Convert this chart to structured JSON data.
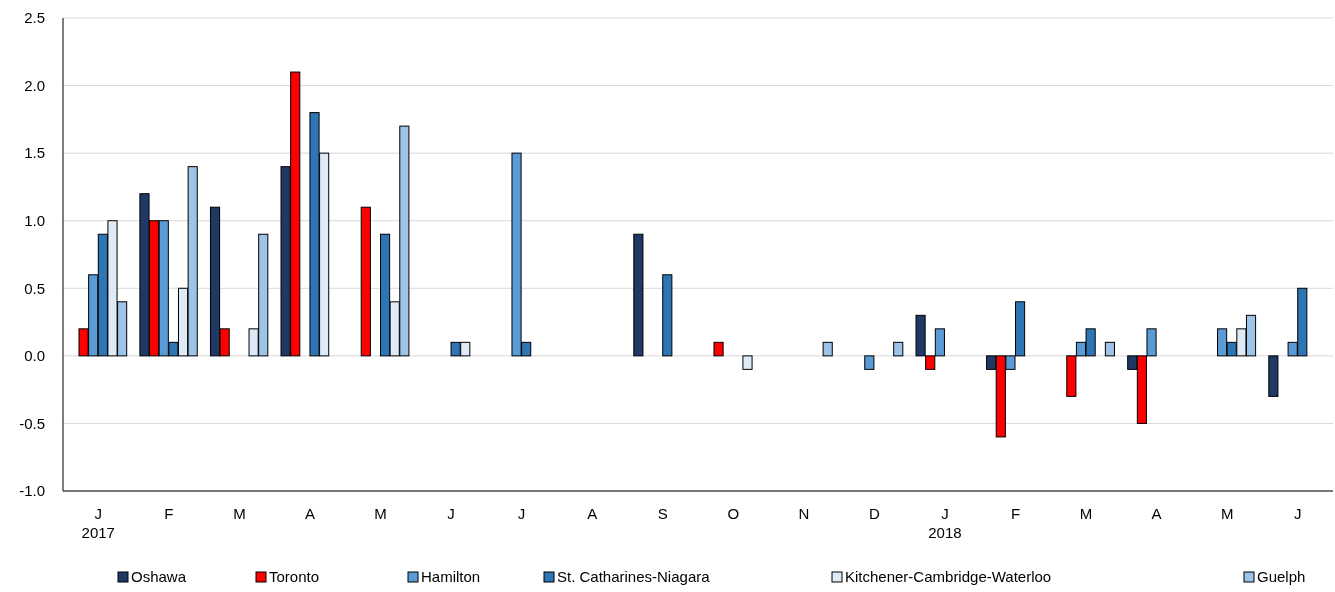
{
  "chart_data": {
    "type": "bar",
    "categories": [
      "J\n2017",
      "F",
      "M",
      "A",
      "M",
      "J",
      "J",
      "A",
      "S",
      "O",
      "N",
      "D",
      "J\n2018",
      "F",
      "M",
      "A",
      "M",
      "J"
    ],
    "ylim": [
      -1,
      2.5
    ],
    "yticks": [
      {
        "value": -1,
        "label": "-1.0"
      },
      {
        "value": -0.5,
        "label": "-0.5"
      },
      {
        "value": 0,
        "label": "0.0"
      },
      {
        "value": 0.5,
        "label": "0.5"
      },
      {
        "value": 1,
        "label": "1.0"
      },
      {
        "value": 1.5,
        "label": "1.5"
      },
      {
        "value": 2,
        "label": "2.0"
      },
      {
        "value": 2.5,
        "label": "2.5"
      }
    ],
    "grid": "y",
    "legend": "bottom",
    "series": [
      {
        "name": "Oshawa",
        "color": "#1f3864",
        "values": [
          null,
          1.2,
          1.1,
          1.4,
          null,
          null,
          null,
          null,
          0.9,
          null,
          null,
          null,
          0.3,
          -0.1,
          null,
          -0.1,
          null,
          -0.3
        ]
      },
      {
        "name": "Toronto",
        "color": "#ff0000",
        "values": [
          0.2,
          1.0,
          0.2,
          2.1,
          1.1,
          null,
          null,
          null,
          null,
          0.1,
          null,
          null,
          -0.1,
          -0.6,
          -0.3,
          -0.5,
          null,
          null
        ]
      },
      {
        "name": "Hamilton",
        "color": "#5b9bd5",
        "values": [
          0.6,
          1.0,
          null,
          null,
          null,
          null,
          1.5,
          null,
          null,
          null,
          null,
          -0.1,
          0.2,
          -0.1,
          0.1,
          0.2,
          0.2,
          0.1
        ]
      },
      {
        "name": "St. Catharines-Niagara",
        "color": "#2e75b6",
        "values": [
          0.9,
          0.1,
          null,
          1.8,
          0.9,
          0.1,
          0.1,
          null,
          0.6,
          null,
          null,
          null,
          null,
          0.4,
          0.2,
          null,
          0.1,
          0.5
        ]
      },
      {
        "name": "Kitchener-Cambridge-Waterloo",
        "color": "#deebf7",
        "values": [
          1.0,
          0.5,
          0.2,
          1.5,
          0.4,
          0.1,
          null,
          null,
          null,
          -0.1,
          null,
          null,
          null,
          null,
          null,
          null,
          0.2,
          null
        ]
      },
      {
        "name": "Guelph",
        "color": "#9dc3e6",
        "values": [
          0.4,
          1.4,
          0.9,
          null,
          1.7,
          null,
          null,
          null,
          null,
          null,
          0.1,
          0.1,
          null,
          null,
          0.1,
          null,
          0.3,
          null
        ]
      }
    ]
  }
}
